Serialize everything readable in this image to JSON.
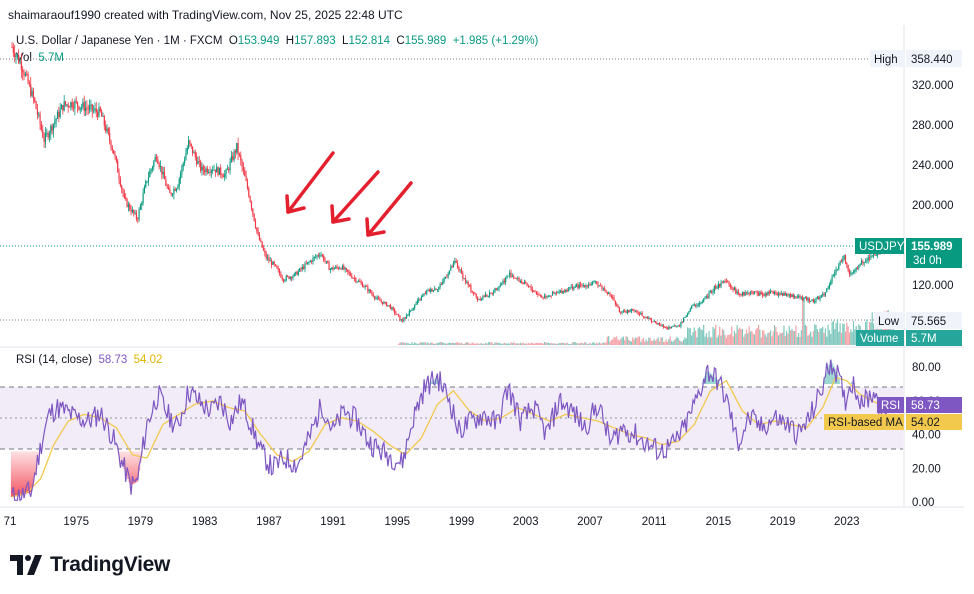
{
  "header": {
    "attribution": "shaimaraouf1990 created with TradingView.com, Nov 25, 2025 22:48 UTC"
  },
  "legend": {
    "title": "U.S. Dollar / Japanese Yen · 1M · FXCM",
    "o_label": "O",
    "o_value": "153.949",
    "h_label": "H",
    "h_value": "157.893",
    "l_label": "L",
    "l_value": "152.814",
    "c_label": "C",
    "c_value": "155.989",
    "change": "+1.985 (+1.29%)",
    "vol_label": "Vol",
    "vol_value": "5.7M"
  },
  "rsi_legend": {
    "label": "RSI (14, close)",
    "rsi_value": "58.73",
    "ma_value": "54.02"
  },
  "badges": {
    "high_label": "High",
    "high_value": "358.440",
    "symbol": "USDJPY",
    "last_price": "155.989",
    "countdown": "3d 0h",
    "low_label": "Low",
    "low_value": "75.565",
    "volume_label": "Volume",
    "volume_value": "5.7M",
    "rsi_label": "RSI",
    "rsi_value": "58.73",
    "ma_label": "RSI-based MA",
    "ma_value": "54.02"
  },
  "colors": {
    "up": "#089981",
    "down": "#f23645",
    "rsi": "#7e57c2",
    "ma": "#f2c94c",
    "arrow": "#e5202e",
    "band": "#ede7f6"
  },
  "brand": {
    "name": "TradingView"
  },
  "chart_data": [
    {
      "type": "candlestick",
      "title": "U.S. Dollar / Japanese Yen · 1M · FXCM",
      "x_ticks": [
        "71",
        "1975",
        "1979",
        "1983",
        "1987",
        "1991",
        "1995",
        "1999",
        "2003",
        "2007",
        "2011",
        "2015",
        "2019",
        "2023"
      ],
      "x_tick_years": [
        1971,
        1975,
        1979,
        1983,
        1987,
        1991,
        1995,
        1999,
        2003,
        2007,
        2011,
        2015,
        2019,
        2023
      ],
      "x_range": [
        1971,
        2026.5
      ],
      "y_ticks": [
        "320.000",
        "280.000",
        "240.000",
        "200.000",
        "120.000"
      ],
      "ylim": [
        70,
        365
      ],
      "approx_close_series": {
        "x": [
          1971,
          1971.6,
          1972.4,
          1973.0,
          1973.6,
          1974.2,
          1974.8,
          1975.5,
          1976.5,
          1977.3,
          1978.0,
          1978.8,
          1979.4,
          1980.0,
          1980.8,
          1981.3,
          1982.0,
          1982.8,
          1983.5,
          1984.3,
          1985.0,
          1985.7,
          1986.3,
          1986.8,
          1987.3,
          1987.9,
          1988.6,
          1989.3,
          1990.2,
          1990.8,
          1991.5,
          1992.3,
          1993.0,
          1993.8,
          1994.5,
          1995.3,
          1995.9,
          1996.8,
          1997.6,
          1998.6,
          1999.2,
          2000.0,
          2000.8,
          2001.5,
          2002.0,
          2003.0,
          2004.0,
          2005.0,
          2006.0,
          2007.4,
          2008.3,
          2008.9,
          2009.6,
          2010.5,
          2011.3,
          2011.8,
          2012.6,
          2013.3,
          2014.0,
          2014.8,
          2015.5,
          2016.3,
          2016.9,
          2017.6,
          2018.5,
          2019.3,
          2020.2,
          2020.9,
          2021.6,
          2022.1,
          2022.8,
          2023.2,
          2023.8,
          2024.5,
          2025.2,
          2025.9
        ],
        "y": [
          358,
          340,
          303,
          265,
          282,
          300,
          302,
          298,
          292,
          255,
          205,
          186,
          225,
          250,
          210,
          220,
          262,
          235,
          237,
          230,
          258,
          215,
          170,
          148,
          140,
          126,
          130,
          140,
          152,
          136,
          138,
          127,
          118,
          105,
          99,
          84,
          96,
          113,
          118,
          143,
          125,
          106,
          111,
          122,
          131,
          120,
          108,
          112,
          118,
          122,
          110,
          92,
          95,
          88,
          80,
          77,
          80,
          98,
          103,
          118,
          123,
          110,
          113,
          111,
          112,
          110,
          107,
          104,
          110,
          128,
          149,
          130,
          140,
          149,
          155,
          156
        ]
      },
      "last_close": 155.989,
      "high": 358.44,
      "low": 75.565,
      "annotations": [
        "three red arrows pointing down-left toward the 1986–1993 price area"
      ]
    },
    {
      "type": "line",
      "title": "RSI (14, close)",
      "y_ticks": [
        "80.00",
        "60.00",
        "40.00",
        "20.00",
        "0.00"
      ],
      "ylim": [
        -3,
        92
      ],
      "bands": {
        "upper": 70,
        "middle": 50,
        "lower": 30
      },
      "series": [
        {
          "name": "RSI",
          "x": [
            1971,
            1971.6,
            1972.2,
            1972.9,
            1973.3,
            1973.8,
            1974.3,
            1975.0,
            1975.8,
            1976.5,
            1977.2,
            1977.9,
            1978.4,
            1978.8,
            1979.4,
            1980.1,
            1980.7,
            1981.3,
            1982.0,
            1982.8,
            1983.4,
            1984.0,
            1984.6,
            1985.3,
            1985.9,
            1986.5,
            1987.2,
            1988.0,
            1988.8,
            1989.6,
            1990.3,
            1991.0,
            1991.7,
            1992.5,
            1993.2,
            1994.0,
            1994.8,
            1995.3,
            1996.0,
            1996.7,
            1997.5,
            1998.3,
            1998.8,
            1999.6,
            2000.4,
            2001.2,
            2001.9,
            2002.7,
            2003.5,
            2004.3,
            2005.1,
            2005.9,
            2006.7,
            2007.5,
            2008.3,
            2009.0,
            2009.8,
            2010.6,
            2011.4,
            2012.2,
            2012.9,
            2013.6,
            2014.3,
            2015.0,
            2015.6,
            2016.2,
            2016.9,
            2017.7,
            2018.5,
            2019.3,
            2020.0,
            2020.7,
            2021.4,
            2022.0,
            2022.4,
            2022.9,
            2023.3,
            2023.8,
            2024.2,
            2024.7,
            2025.3,
            2025.9
          ],
          "values": [
            3,
            4,
            6,
            38,
            52,
            56,
            54,
            50,
            48,
            53,
            40,
            22,
            10,
            12,
            46,
            64,
            52,
            44,
            66,
            58,
            54,
            60,
            48,
            60,
            46,
            30,
            20,
            26,
            22,
            40,
            58,
            42,
            54,
            48,
            36,
            30,
            26,
            23,
            50,
            68,
            74,
            60,
            42,
            48,
            52,
            46,
            68,
            48,
            56,
            40,
            60,
            54,
            44,
            58,
            35,
            44,
            40,
            34,
            30,
            34,
            44,
            60,
            78,
            72,
            58,
            34,
            50,
            44,
            50,
            46,
            40,
            50,
            66,
            84,
            76,
            60,
            72,
            62,
            60,
            66,
            52,
            59
          ]
        },
        {
          "name": "RSI-based MA",
          "x": [
            1971,
            1972.0,
            1972.8,
            1973.6,
            1974.5,
            1975.5,
            1976.5,
            1977.5,
            1978.5,
            1979.4,
            1980.4,
            1981.4,
            1982.4,
            1983.5,
            1984.5,
            1985.5,
            1986.5,
            1987.5,
            1988.5,
            1989.5,
            1990.5,
            1991.5,
            1992.5,
            1993.5,
            1994.5,
            1995.5,
            1996.5,
            1997.5,
            1998.5,
            1999.5,
            2000.5,
            2001.5,
            2002.5,
            2003.5,
            2004.5,
            2005.5,
            2006.5,
            2007.5,
            2008.5,
            2009.5,
            2010.5,
            2011.5,
            2012.5,
            2013.5,
            2014.5,
            2015.5,
            2016.5,
            2017.5,
            2018.5,
            2019.5,
            2020.5,
            2021.5,
            2022.3,
            2023.0,
            2023.8,
            2024.6,
            2025.9
          ],
          "values": [
            3,
            6,
            14,
            34,
            48,
            52,
            50,
            44,
            28,
            26,
            46,
            52,
            58,
            60,
            56,
            54,
            40,
            28,
            24,
            30,
            46,
            50,
            48,
            42,
            34,
            28,
            38,
            58,
            66,
            54,
            48,
            50,
            56,
            52,
            48,
            52,
            50,
            48,
            44,
            40,
            38,
            34,
            36,
            46,
            66,
            72,
            54,
            46,
            48,
            46,
            44,
            56,
            74,
            72,
            64,
            60,
            54
          ]
        }
      ]
    }
  ]
}
